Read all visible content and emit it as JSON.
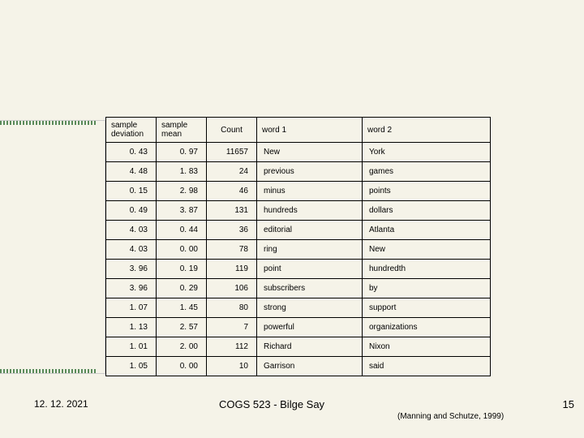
{
  "table": {
    "headers": {
      "dev": "sample deviation",
      "mean": "sample mean",
      "count": "Count",
      "w1": "word 1",
      "w2": "word 2"
    },
    "rows": [
      {
        "dev": "0. 43",
        "mean": "0. 97",
        "count": "11657",
        "w1": "New",
        "w2": "York"
      },
      {
        "dev": "4. 48",
        "mean": "1. 83",
        "count": "24",
        "w1": "previous",
        "w2": "games"
      },
      {
        "dev": "0. 15",
        "mean": "2. 98",
        "count": "46",
        "w1": "minus",
        "w2": "points"
      },
      {
        "dev": "0. 49",
        "mean": "3. 87",
        "count": "131",
        "w1": "hundreds",
        "w2": "dollars"
      },
      {
        "dev": "4. 03",
        "mean": "0. 44",
        "count": "36",
        "w1": "editorial",
        "w2": "Atlanta"
      },
      {
        "dev": "4. 03",
        "mean": "0. 00",
        "count": "78",
        "w1": "ring",
        "w2": "New"
      },
      {
        "dev": "3. 96",
        "mean": "0. 19",
        "count": "119",
        "w1": "point",
        "w2": "hundredth"
      },
      {
        "dev": "3. 96",
        "mean": "0. 29",
        "count": "106",
        "w1": "subscribers",
        "w2": "by"
      },
      {
        "dev": "1. 07",
        "mean": "1. 45",
        "count": "80",
        "w1": "strong",
        "w2": "support"
      },
      {
        "dev": "1. 13",
        "mean": "2. 57",
        "count": "7",
        "w1": "powerful",
        "w2": "organizations"
      },
      {
        "dev": "1. 01",
        "mean": "2. 00",
        "count": "112",
        "w1": "Richard",
        "w2": "Nixon"
      },
      {
        "dev": "1. 05",
        "mean": "0. 00",
        "count": "10",
        "w1": "Garrison",
        "w2": "said"
      }
    ]
  },
  "footer": {
    "date": "12. 12. 2021",
    "title": "COGS 523 - Bilge Say",
    "cite": "(Manning and Schutze, 1999)",
    "page": "15"
  }
}
